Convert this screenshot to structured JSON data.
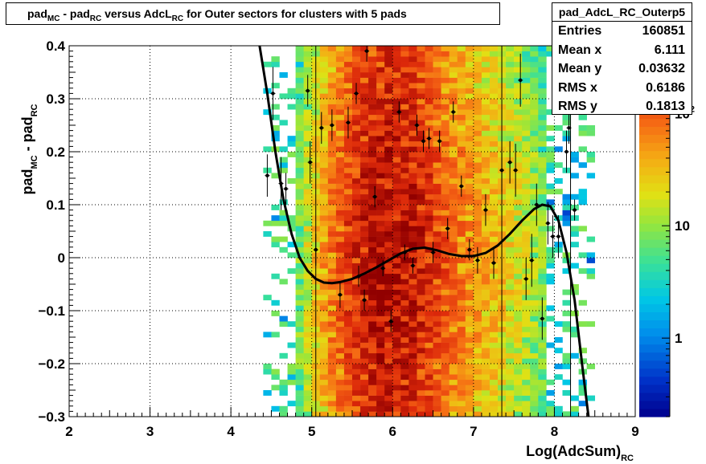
{
  "title": {
    "parts": [
      {
        "text": "pad",
        "sub": false
      },
      {
        "text": "MC",
        "sub": true
      },
      {
        "text": " - pad",
        "sub": false
      },
      {
        "text": "RC",
        "sub": true
      },
      {
        "text": " versus AdcL",
        "sub": false
      },
      {
        "text": "RC",
        "sub": true
      },
      {
        "text": " for Outer sectors for clusters with 5 pads",
        "sub": false
      }
    ]
  },
  "stats": {
    "name": "pad_AdcL_RC_Outerp5",
    "rows": [
      {
        "label": "Entries",
        "value": "160851"
      },
      {
        "label": "Mean x",
        "value": "6.111"
      },
      {
        "label": "Mean y",
        "value": "0.03632"
      },
      {
        "label": "RMS x",
        "value": "0.6186"
      },
      {
        "label": "RMS y",
        "value": "0.1813"
      }
    ]
  },
  "chart_data": {
    "type": "heatmap",
    "title": "pad_MC - pad_RC versus AdcL_RC for Outer sectors for clusters with 5 pads",
    "xlabel": {
      "main": "Log(AdcSum)",
      "sub": "RC"
    },
    "ylabel": {
      "parts": [
        {
          "text": "pad",
          "sub": false
        },
        {
          "text": "MC",
          "sub": true
        },
        {
          "text": " - pad",
          "sub": false
        },
        {
          "text": "RC",
          "sub": true
        }
      ]
    },
    "xlim": [
      2,
      9
    ],
    "ylim": [
      -0.3,
      0.4
    ],
    "x_ticks": [
      2,
      3,
      4,
      5,
      6,
      7,
      8,
      9
    ],
    "x_tick_labels": [
      "2",
      "3",
      "4",
      "5",
      "6",
      "7",
      "8",
      "9"
    ],
    "y_ticks": [
      -0.3,
      -0.2,
      -0.1,
      0,
      0.1,
      0.2,
      0.3,
      0.4
    ],
    "y_tick_labels": [
      "−0.3",
      "−0.2",
      "−0.1",
      "0",
      "0.1",
      "0.2",
      "0.3",
      "0.4"
    ],
    "colorbar": {
      "scale": "log",
      "zlim": [
        0.2,
        400
      ],
      "tick_labels": [
        {
          "value": 1,
          "text": "1"
        },
        {
          "value": 10,
          "text": "10"
        },
        {
          "value": 100,
          "text": "10",
          "sup": "2"
        }
      ]
    },
    "profile_points": [
      {
        "x": 4.45,
        "y": 0.155,
        "err": 0.04
      },
      {
        "x": 4.52,
        "y": 0.31,
        "err": 0.05
      },
      {
        "x": 4.62,
        "y": 0.14,
        "err": 0.05
      },
      {
        "x": 4.68,
        "y": 0.13,
        "err": 0.03
      },
      {
        "x": 4.95,
        "y": 0.315,
        "err": 0.03
      },
      {
        "x": 4.98,
        "y": 0.18,
        "err": 0.04
      },
      {
        "x": 5.05,
        "y": 0.015,
        "err": 0.03
      },
      {
        "x": 5.12,
        "y": 0.245,
        "err": 0.03
      },
      {
        "x": 5.25,
        "y": 0.25,
        "err": 0.03
      },
      {
        "x": 5.35,
        "y": -0.07,
        "err": 0.025
      },
      {
        "x": 5.45,
        "y": 0.255,
        "err": 0.03
      },
      {
        "x": 5.55,
        "y": 0.31,
        "err": 0.02
      },
      {
        "x": 5.58,
        "y": -0.035,
        "err": 0.02
      },
      {
        "x": 5.65,
        "y": -0.08,
        "err": 0.02
      },
      {
        "x": 5.68,
        "y": 0.39,
        "err": 0.02
      },
      {
        "x": 5.78,
        "y": 0.115,
        "err": 0.02
      },
      {
        "x": 5.88,
        "y": -0.02,
        "err": 0.015
      },
      {
        "x": 5.98,
        "y": -0.12,
        "err": 0.02
      },
      {
        "x": 6.08,
        "y": 0.275,
        "err": 0.02
      },
      {
        "x": 6.15,
        "y": 0.01,
        "err": 0.015
      },
      {
        "x": 6.25,
        "y": -0.015,
        "err": 0.015
      },
      {
        "x": 6.3,
        "y": 0.25,
        "err": 0.02
      },
      {
        "x": 6.38,
        "y": 0.22,
        "err": 0.02
      },
      {
        "x": 6.45,
        "y": 0.225,
        "err": 0.02
      },
      {
        "x": 6.5,
        "y": 0.01,
        "err": 0.02
      },
      {
        "x": 6.58,
        "y": 0.22,
        "err": 0.02
      },
      {
        "x": 6.68,
        "y": 0.055,
        "err": 0.02
      },
      {
        "x": 6.75,
        "y": 0.275,
        "err": 0.02
      },
      {
        "x": 6.85,
        "y": 0.135,
        "err": 0.02
      },
      {
        "x": 6.95,
        "y": 0.015,
        "err": 0.02
      },
      {
        "x": 7.05,
        "y": -0.005,
        "err": 0.025
      },
      {
        "x": 7.15,
        "y": 0.09,
        "err": 0.03
      },
      {
        "x": 7.25,
        "y": -0.01,
        "err": 0.03
      },
      {
        "x": 7.35,
        "y": 0.165,
        "err": 0.04
      },
      {
        "x": 7.45,
        "y": 0.18,
        "err": 0.04
      },
      {
        "x": 7.52,
        "y": 0.165,
        "err": 0.05
      },
      {
        "x": 7.58,
        "y": 0.335,
        "err": 0.05
      },
      {
        "x": 7.65,
        "y": -0.04,
        "err": 0.04
      },
      {
        "x": 7.72,
        "y": -0.005,
        "err": 0.05
      },
      {
        "x": 7.78,
        "y": 0.1,
        "err": 0.04
      },
      {
        "x": 7.85,
        "y": -0.115,
        "err": 0.04
      },
      {
        "x": 7.92,
        "y": 0.065,
        "err": 0.04
      },
      {
        "x": 7.98,
        "y": 0.04,
        "err": 0.04
      },
      {
        "x": 8.05,
        "y": 0.04,
        "err": 0.04
      },
      {
        "x": 8.15,
        "y": 0.2,
        "err": 0.04
      },
      {
        "x": 8.18,
        "y": 0.245,
        "err": 0.03
      },
      {
        "x": 8.25,
        "y": 0.09,
        "err": 0.02
      }
    ],
    "fit_curve": [
      [
        4.35,
        0.405
      ],
      [
        4.45,
        0.31
      ],
      [
        4.55,
        0.2
      ],
      [
        4.65,
        0.11
      ],
      [
        4.75,
        0.045
      ],
      [
        4.85,
        0.0
      ],
      [
        4.95,
        -0.025
      ],
      [
        5.05,
        -0.04
      ],
      [
        5.15,
        -0.047
      ],
      [
        5.25,
        -0.048
      ],
      [
        5.35,
        -0.046
      ],
      [
        5.5,
        -0.04
      ],
      [
        5.65,
        -0.03
      ],
      [
        5.8,
        -0.018
      ],
      [
        5.95,
        -0.005
      ],
      [
        6.1,
        0.008
      ],
      [
        6.25,
        0.017
      ],
      [
        6.4,
        0.019
      ],
      [
        6.55,
        0.014
      ],
      [
        6.7,
        0.007
      ],
      [
        6.85,
        0.003
      ],
      [
        7.0,
        0.003
      ],
      [
        7.15,
        0.009
      ],
      [
        7.3,
        0.023
      ],
      [
        7.45,
        0.045
      ],
      [
        7.6,
        0.07
      ],
      [
        7.75,
        0.092
      ],
      [
        7.85,
        0.1
      ],
      [
        7.95,
        0.097
      ],
      [
        8.05,
        0.07
      ],
      [
        8.15,
        0.01
      ],
      [
        8.25,
        -0.08
      ],
      [
        8.35,
        -0.21
      ],
      [
        8.43,
        -0.31
      ]
    ],
    "vertical_lines_x": [
      5.05,
      7.35,
      8.2
    ]
  }
}
